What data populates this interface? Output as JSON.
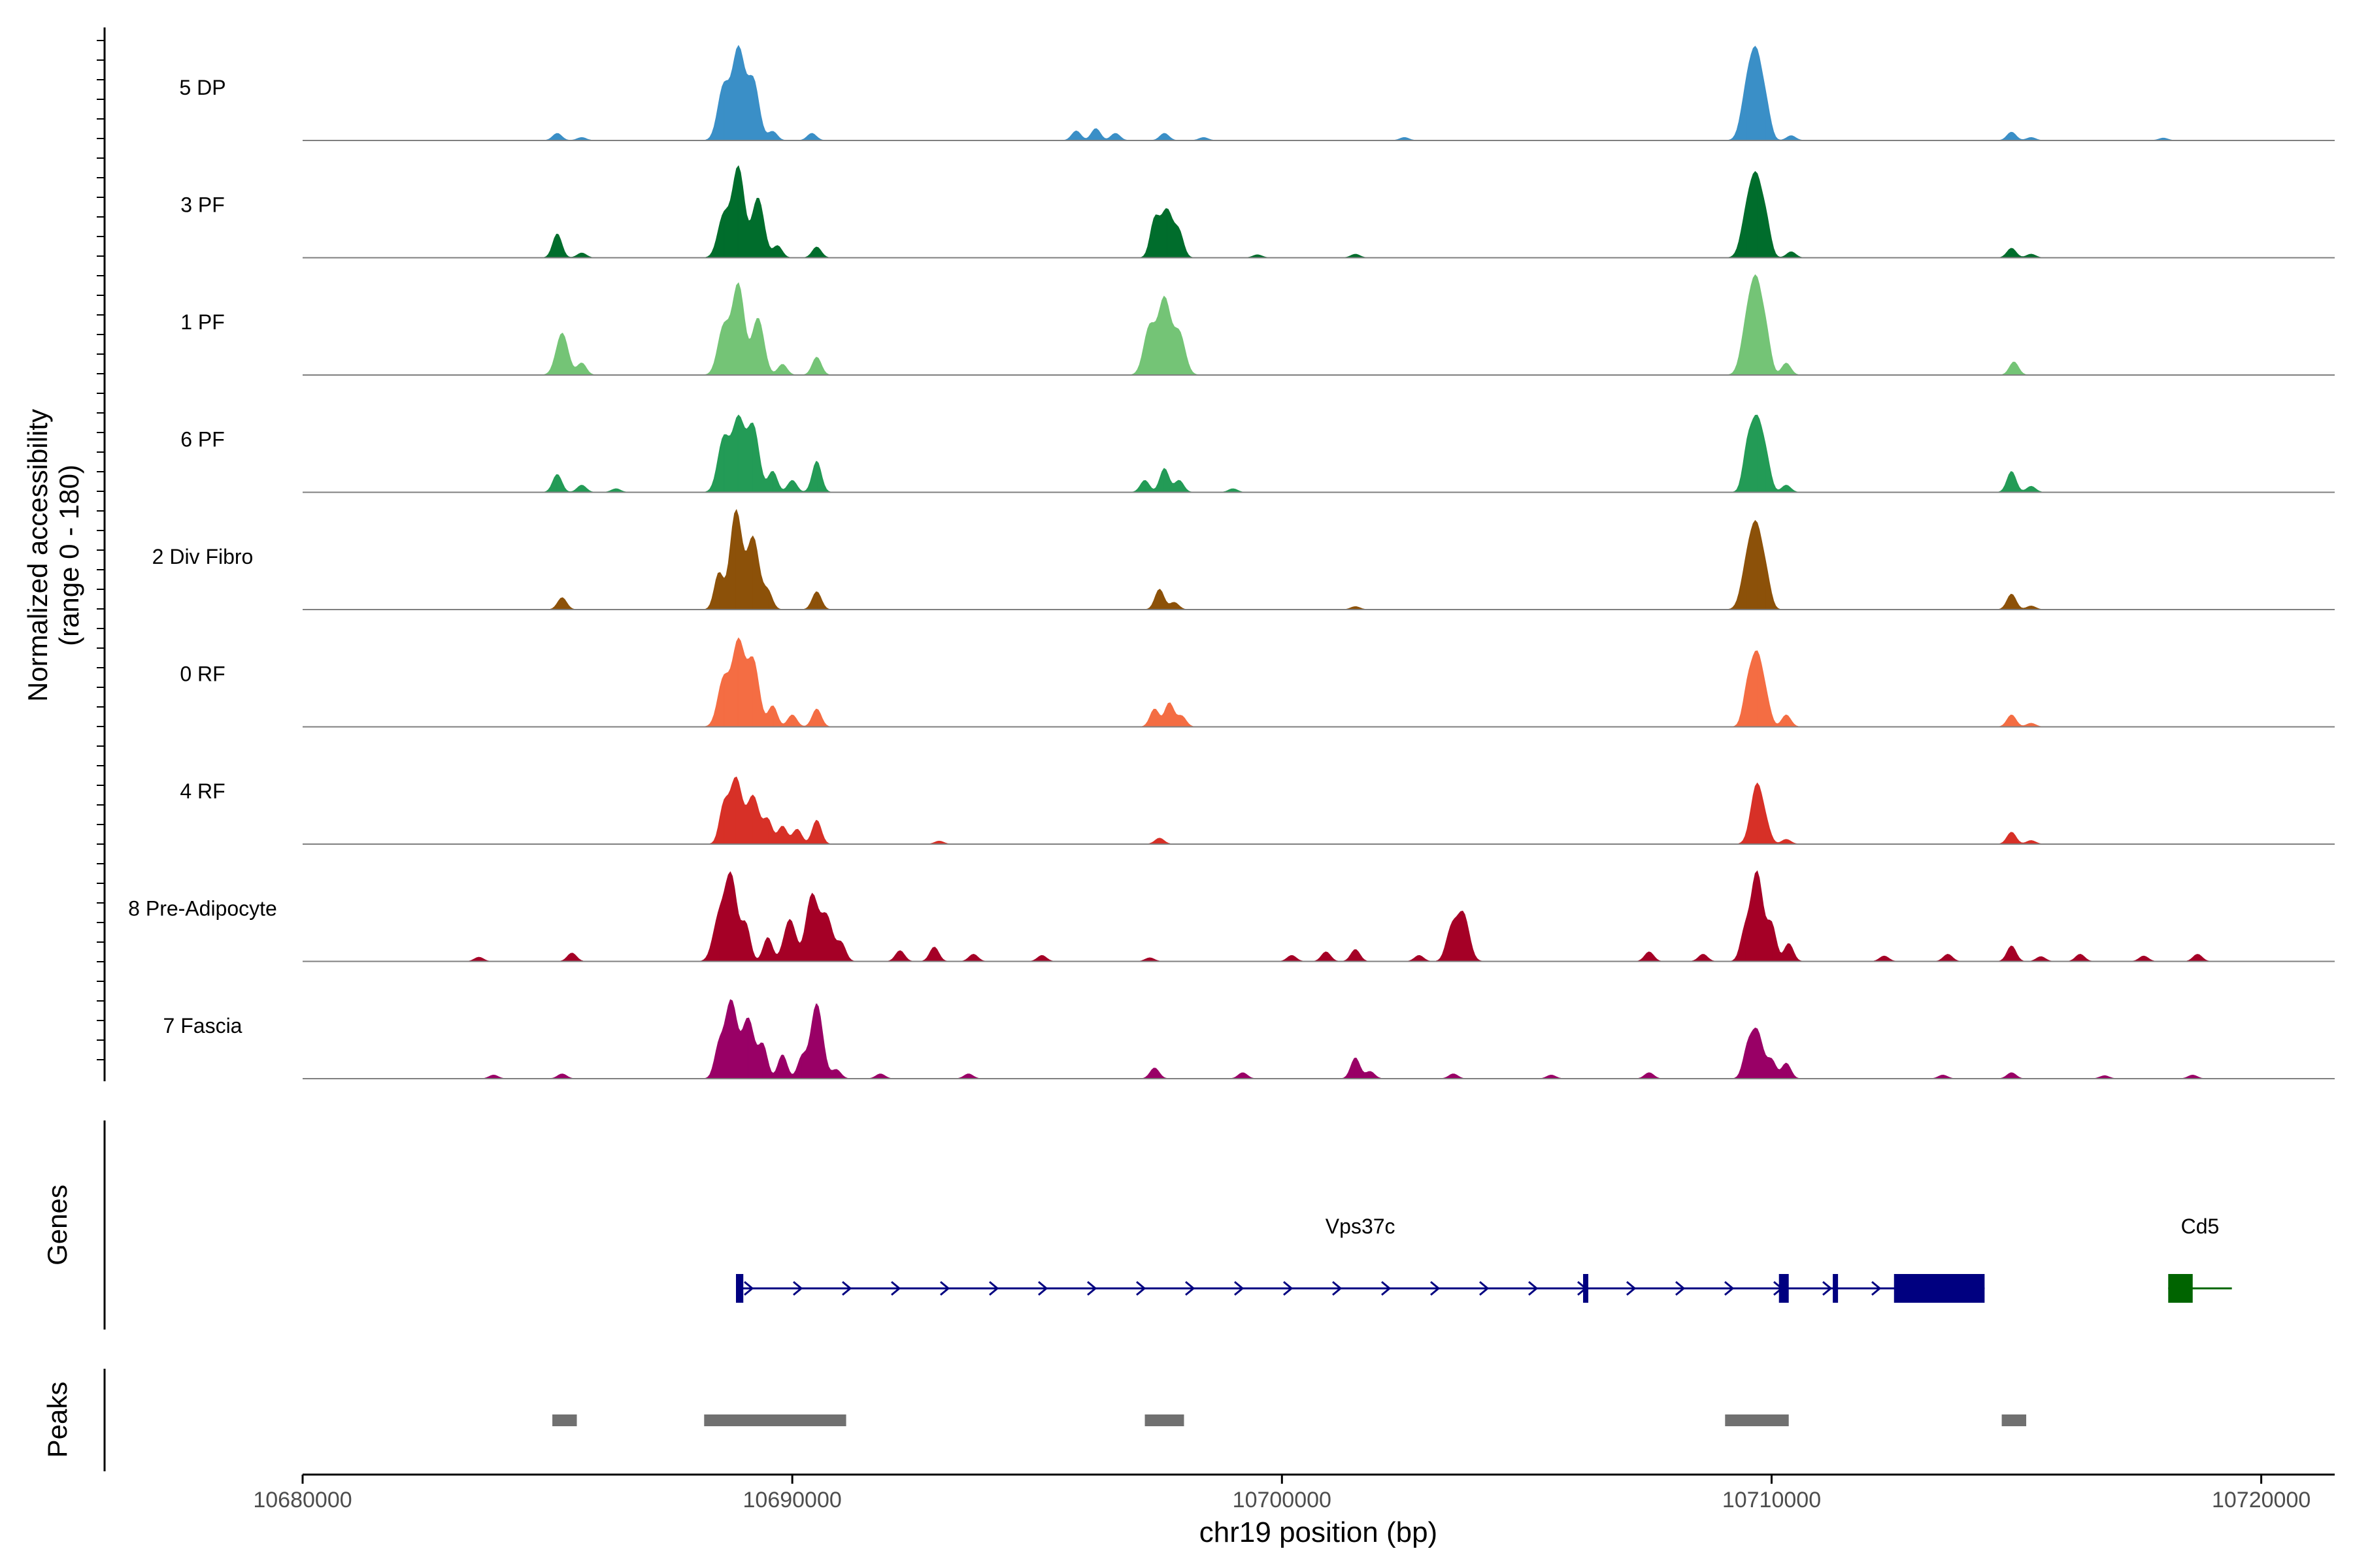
{
  "chart_data": {
    "type": "area",
    "title": "",
    "ylabel_line1": "Normalized accessibility",
    "ylabel_line2": "(range 0 - 180)",
    "xlabel": "chr19 position (bp)",
    "chromosome": "chr19",
    "xlim": [
      10680000,
      10721500
    ],
    "ylim": [
      0,
      180
    ],
    "x_ticks": [
      {
        "value": 10680000,
        "label": "10680000"
      },
      {
        "value": 10690000,
        "label": "10690000"
      },
      {
        "value": 10700000,
        "label": "10700000"
      },
      {
        "value": 10710000,
        "label": "10710000"
      },
      {
        "value": 10720000,
        "label": "10720000"
      }
    ],
    "track_range": [
      10681800,
      10719400
    ],
    "tracks": [
      {
        "name": "5 DP",
        "color": "#3A8FC7",
        "peaks": [
          [
            10685200,
            12
          ],
          [
            10685700,
            5
          ],
          [
            10688600,
            90
          ],
          [
            10688900,
            150
          ],
          [
            10689200,
            100
          ],
          [
            10689600,
            15
          ],
          [
            10690400,
            12
          ],
          [
            10695800,
            16
          ],
          [
            10696200,
            20
          ],
          [
            10696600,
            12
          ],
          [
            10697600,
            12
          ],
          [
            10698400,
            5
          ],
          [
            10702500,
            5
          ],
          [
            10709500,
            80
          ],
          [
            10709700,
            130
          ],
          [
            10709900,
            40
          ],
          [
            10710400,
            8
          ],
          [
            10714900,
            14
          ],
          [
            10715300,
            5
          ],
          [
            10718000,
            4
          ]
        ]
      },
      {
        "name": "3 PF",
        "color": "#006D2C",
        "peaks": [
          [
            10685200,
            40
          ],
          [
            10685700,
            8
          ],
          [
            10688600,
            70
          ],
          [
            10688900,
            150
          ],
          [
            10689300,
            100
          ],
          [
            10689700,
            20
          ],
          [
            10690500,
            18
          ],
          [
            10697400,
            60
          ],
          [
            10697650,
            80
          ],
          [
            10697900,
            40
          ],
          [
            10699500,
            5
          ],
          [
            10701500,
            6
          ],
          [
            10709500,
            70
          ],
          [
            10709700,
            120
          ],
          [
            10709900,
            45
          ],
          [
            10710400,
            10
          ],
          [
            10714900,
            16
          ],
          [
            10715300,
            6
          ]
        ]
      },
      {
        "name": "1 PF",
        "color": "#74C476",
        "peaks": [
          [
            10685300,
            70
          ],
          [
            10685700,
            20
          ],
          [
            10688600,
            80
          ],
          [
            10688900,
            150
          ],
          [
            10689300,
            95
          ],
          [
            10689800,
            18
          ],
          [
            10690500,
            30
          ],
          [
            10697300,
            80
          ],
          [
            10697600,
            125
          ],
          [
            10697900,
            70
          ],
          [
            10709500,
            80
          ],
          [
            10709700,
            140
          ],
          [
            10709900,
            50
          ],
          [
            10710300,
            20
          ],
          [
            10714950,
            22
          ]
        ]
      },
      {
        "name": "6 PF",
        "color": "#239B56",
        "peaks": [
          [
            10685200,
            30
          ],
          [
            10685700,
            12
          ],
          [
            10686400,
            6
          ],
          [
            10688600,
            90
          ],
          [
            10688900,
            120
          ],
          [
            10689200,
            110
          ],
          [
            10689600,
            35
          ],
          [
            10690000,
            20
          ],
          [
            10690500,
            52
          ],
          [
            10697200,
            20
          ],
          [
            10697600,
            40
          ],
          [
            10697900,
            20
          ],
          [
            10699000,
            6
          ],
          [
            10709500,
            60
          ],
          [
            10709700,
            120
          ],
          [
            10709900,
            40
          ],
          [
            10710300,
            12
          ],
          [
            10714900,
            35
          ],
          [
            10715300,
            10
          ]
        ]
      },
      {
        "name": "2 Div Fibro",
        "color": "#8C5109",
        "peaks": [
          [
            10685300,
            20
          ],
          [
            10688500,
            60
          ],
          [
            10688850,
            165
          ],
          [
            10689200,
            120
          ],
          [
            10689500,
            30
          ],
          [
            10690500,
            30
          ],
          [
            10697500,
            34
          ],
          [
            10697800,
            12
          ],
          [
            10701500,
            5
          ],
          [
            10709500,
            70
          ],
          [
            10709700,
            125
          ],
          [
            10709900,
            40
          ],
          [
            10714900,
            26
          ],
          [
            10715300,
            6
          ]
        ]
      },
      {
        "name": "0 RF",
        "color": "#F46D43",
        "peaks": [
          [
            10688600,
            80
          ],
          [
            10688900,
            140
          ],
          [
            10689200,
            110
          ],
          [
            10689600,
            35
          ],
          [
            10690000,
            20
          ],
          [
            10690500,
            30
          ],
          [
            10697400,
            30
          ],
          [
            10697700,
            40
          ],
          [
            10697950,
            18
          ],
          [
            10709500,
            50
          ],
          [
            10709700,
            120
          ],
          [
            10709900,
            30
          ],
          [
            10710300,
            20
          ],
          [
            10714900,
            20
          ],
          [
            10715300,
            6
          ]
        ]
      },
      {
        "name": "4 RF",
        "color": "#D73027",
        "peaks": [
          [
            10688600,
            60
          ],
          [
            10688850,
            110
          ],
          [
            10689200,
            80
          ],
          [
            10689500,
            40
          ],
          [
            10689800,
            30
          ],
          [
            10690100,
            25
          ],
          [
            10690500,
            40
          ],
          [
            10693000,
            5
          ],
          [
            10697500,
            10
          ],
          [
            10709700,
            100
          ],
          [
            10709900,
            20
          ],
          [
            10710300,
            8
          ],
          [
            10714900,
            20
          ],
          [
            10715300,
            6
          ]
        ]
      },
      {
        "name": "8 Pre-Adipocyte",
        "color": "#A50026",
        "peaks": [
          [
            10683600,
            7
          ],
          [
            10685500,
            14
          ],
          [
            10688500,
            70
          ],
          [
            10688750,
            140
          ],
          [
            10689050,
            60
          ],
          [
            10689500,
            40
          ],
          [
            10689950,
            70
          ],
          [
            10690400,
            110
          ],
          [
            10690700,
            75
          ],
          [
            10691000,
            30
          ],
          [
            10692200,
            18
          ],
          [
            10692900,
            24
          ],
          [
            10693700,
            12
          ],
          [
            10695100,
            10
          ],
          [
            10697300,
            6
          ],
          [
            10700200,
            10
          ],
          [
            10700900,
            16
          ],
          [
            10701500,
            20
          ],
          [
            10702800,
            10
          ],
          [
            10703400,
            25
          ],
          [
            10703700,
            80
          ],
          [
            10703500,
            35
          ],
          [
            10707500,
            16
          ],
          [
            10708600,
            12
          ],
          [
            10709450,
            45
          ],
          [
            10709700,
            150
          ],
          [
            10710000,
            60
          ],
          [
            10710350,
            30
          ],
          [
            10712300,
            9
          ],
          [
            10713600,
            12
          ],
          [
            10714900,
            26
          ],
          [
            10715500,
            8
          ],
          [
            10716300,
            12
          ],
          [
            10717600,
            9
          ],
          [
            10718700,
            12
          ]
        ]
      },
      {
        "name": "7 Fascia",
        "color": "#990066",
        "peaks": [
          [
            10683900,
            6
          ],
          [
            10685300,
            8
          ],
          [
            10688500,
            50
          ],
          [
            10688750,
            130
          ],
          [
            10689100,
            100
          ],
          [
            10689400,
            55
          ],
          [
            10689800,
            40
          ],
          [
            10690200,
            35
          ],
          [
            10690500,
            125
          ],
          [
            10690900,
            15
          ],
          [
            10691800,
            8
          ],
          [
            10693600,
            8
          ],
          [
            10697400,
            18
          ],
          [
            10699200,
            10
          ],
          [
            10701500,
            35
          ],
          [
            10701800,
            12
          ],
          [
            10703500,
            8
          ],
          [
            10705500,
            6
          ],
          [
            10707500,
            10
          ],
          [
            10709500,
            40
          ],
          [
            10709700,
            80
          ],
          [
            10710000,
            30
          ],
          [
            10710300,
            26
          ],
          [
            10713500,
            6
          ],
          [
            10714900,
            10
          ],
          [
            10716800,
            5
          ],
          [
            10718600,
            6
          ]
        ]
      }
    ],
    "genes_label": "Genes",
    "genes": [
      {
        "name": "Vps37c",
        "color": "#000080",
        "strand": "+",
        "start": 10688850,
        "end": 10714350,
        "exons": [
          [
            10688850,
            10689000
          ],
          [
            10706150,
            10706250
          ],
          [
            10710150,
            10710350
          ],
          [
            10711250,
            10711350
          ],
          [
            10712500,
            10714350
          ]
        ]
      },
      {
        "name": "Cd5",
        "color": "#006400",
        "strand": "-",
        "start": 10718100,
        "end": 10719400,
        "exons": [
          [
            10718100,
            10718600
          ]
        ]
      }
    ],
    "peaks_label": "Peaks",
    "peak_color": "#707070",
    "peak_regions": [
      [
        10685100,
        10685600
      ],
      [
        10688200,
        10691100
      ],
      [
        10697200,
        10698000
      ],
      [
        10709050,
        10710350
      ],
      [
        10714700,
        10715200
      ]
    ]
  }
}
